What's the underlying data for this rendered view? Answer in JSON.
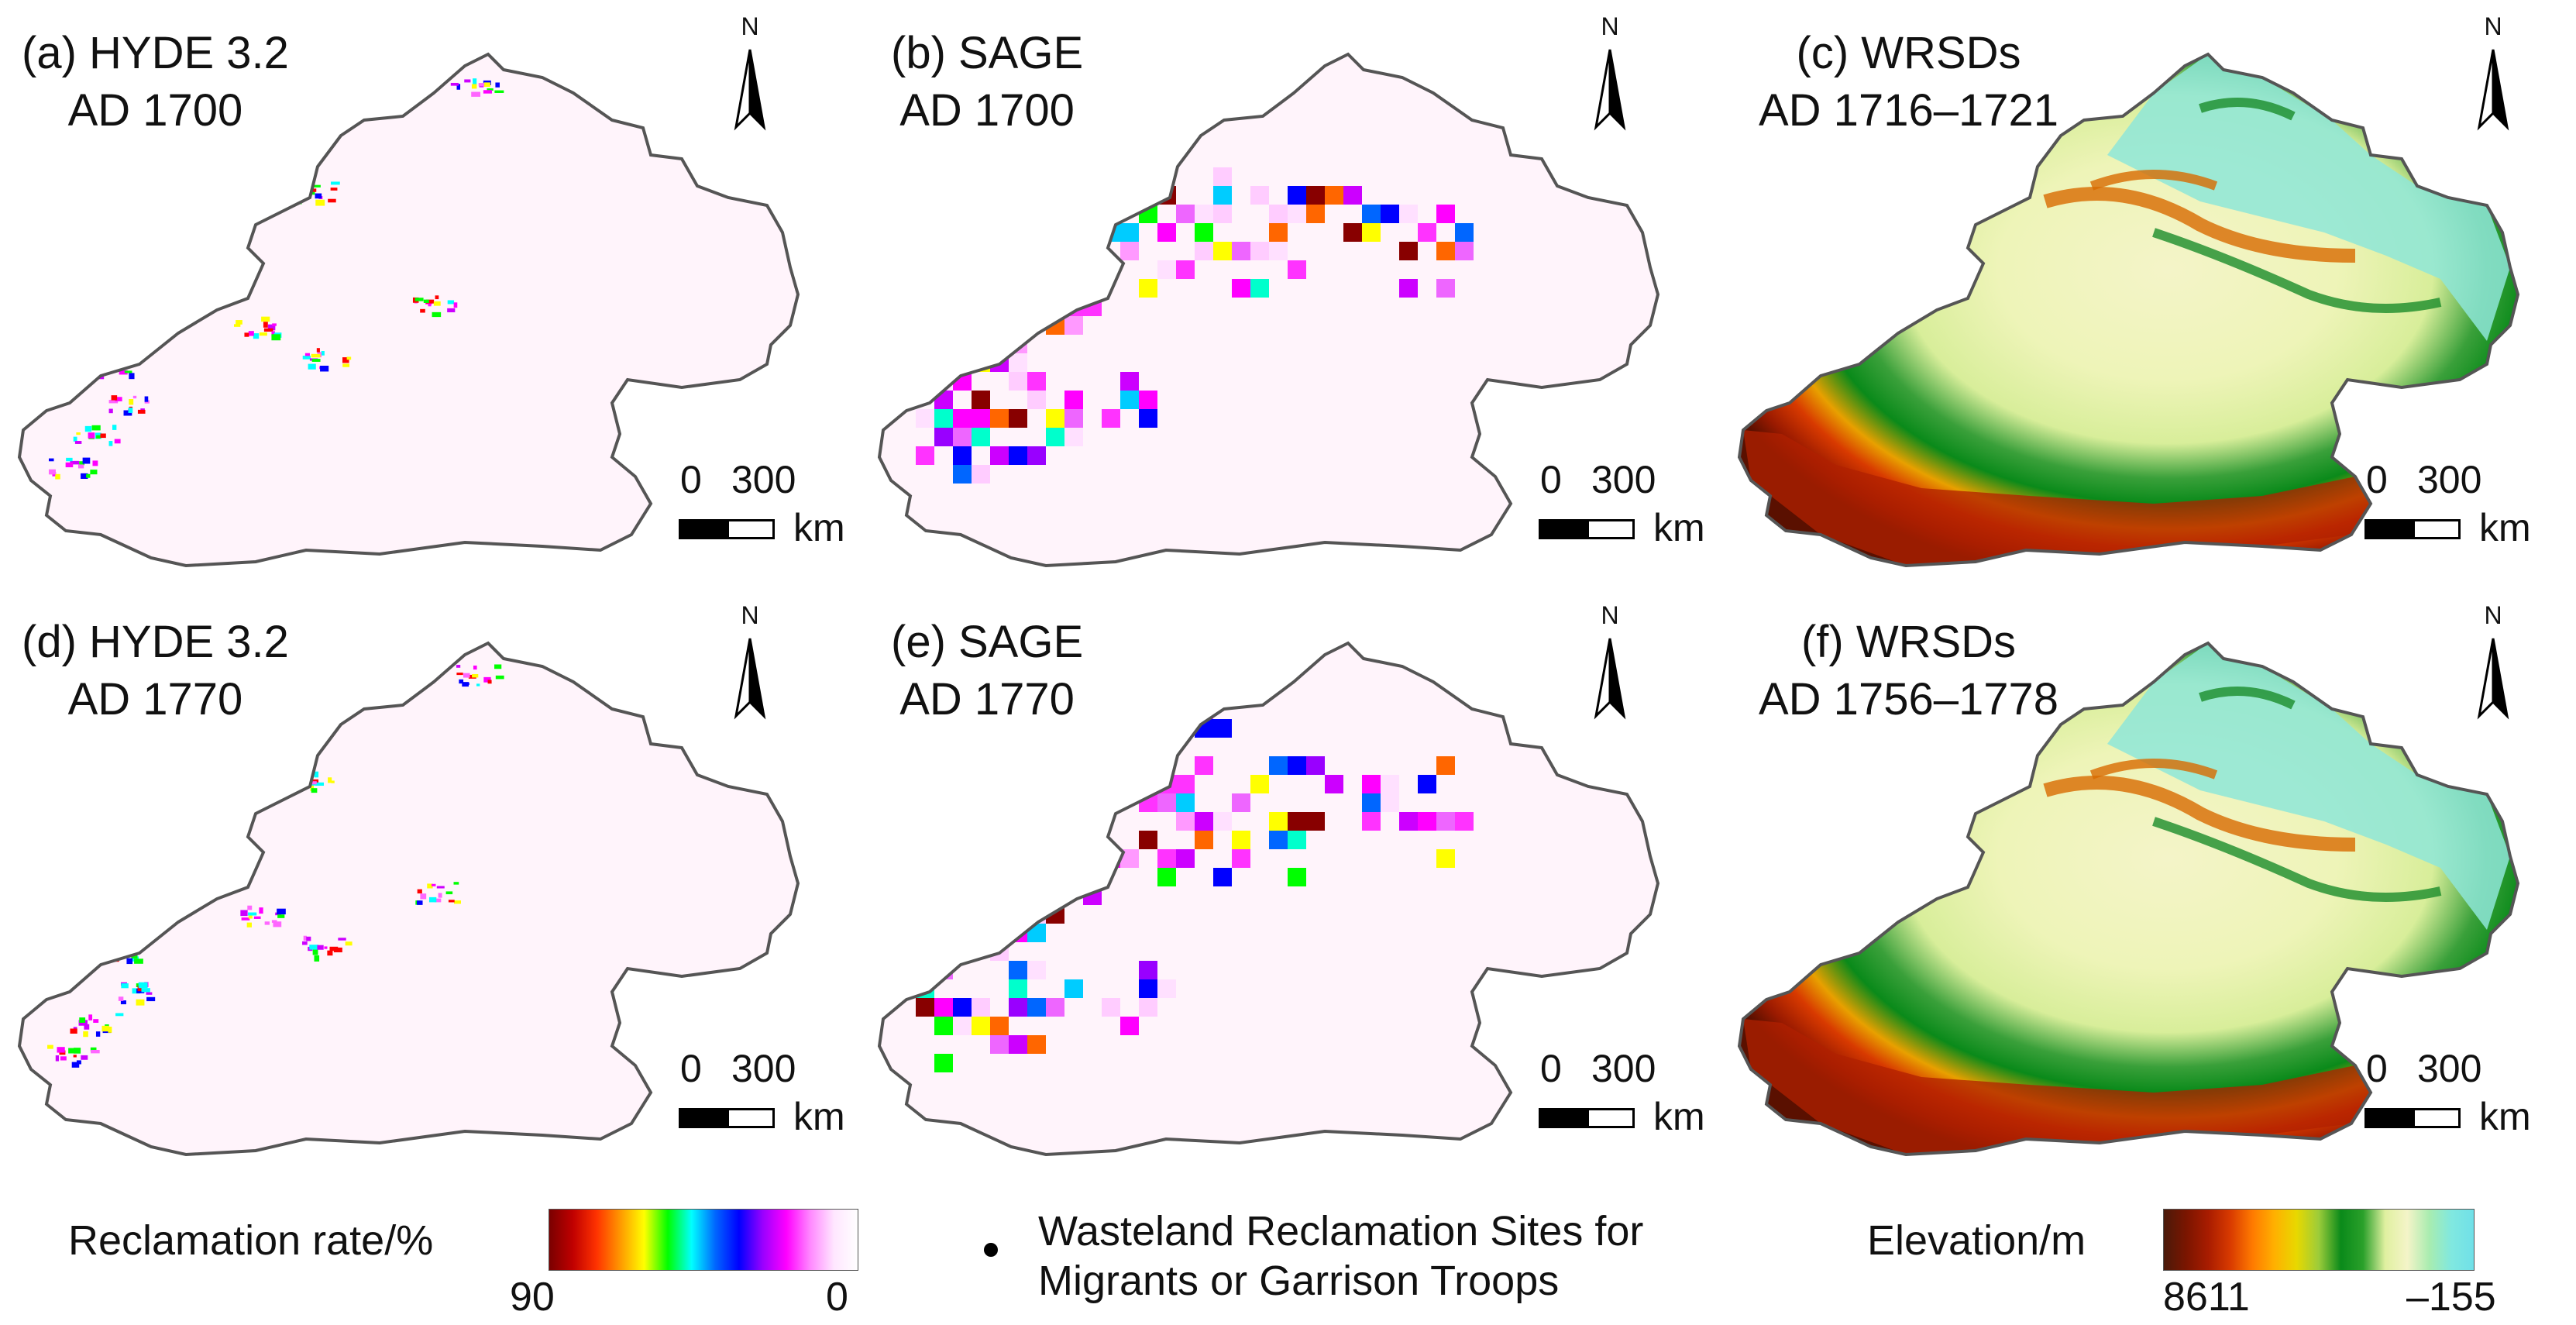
{
  "panels": [
    {
      "id": "a",
      "line1": "(a) HYDE 3.2",
      "line2": "AD 1700",
      "type": "hyde"
    },
    {
      "id": "b",
      "line1": "(b) SAGE",
      "line2": "AD 1700",
      "type": "sage"
    },
    {
      "id": "c",
      "line1": "(c) WRSDs",
      "line2": "AD 1716–1721",
      "type": "elev"
    },
    {
      "id": "d",
      "line1": "(d) HYDE 3.2",
      "line2": "AD 1770",
      "type": "hyde"
    },
    {
      "id": "e",
      "line1": "(e) SAGE",
      "line2": "AD 1770",
      "type": "sage"
    },
    {
      "id": "f",
      "line1": "(f) WRSDs",
      "line2": "AD 1756–1778",
      "type": "elev"
    }
  ],
  "north_arrow": {
    "label": "N"
  },
  "scale_bar": {
    "start": "0",
    "end": "300",
    "unit": "km"
  },
  "legend": {
    "reclamation": {
      "title": "Reclamation rate/%",
      "max": "90",
      "min": "0",
      "colors": [
        "#7a0000",
        "#c00000",
        "#ff3300",
        "#ff9900",
        "#ffff00",
        "#00ff00",
        "#00ffff",
        "#0066ff",
        "#0000ff",
        "#9900ff",
        "#ff00ff",
        "#ff88ff",
        "#ffe6ff",
        "#ffffff"
      ]
    },
    "sites": {
      "line1": "Wasteland Reclamation Sites for",
      "line2": "Migrants or Garrison Troops"
    },
    "elevation": {
      "title": "Elevation/m",
      "max": "8611",
      "min": "–155",
      "colors": [
        "#4a1a0a",
        "#7a1500",
        "#a81c00",
        "#d83a00",
        "#ff7a00",
        "#ffb000",
        "#e8d800",
        "#9ccc3a",
        "#0a8a1a",
        "#2aa02a",
        "#e0f0a0",
        "#f4f4c8",
        "#a8ecb0",
        "#80e8e0",
        "#70e0e8"
      ]
    }
  }
}
